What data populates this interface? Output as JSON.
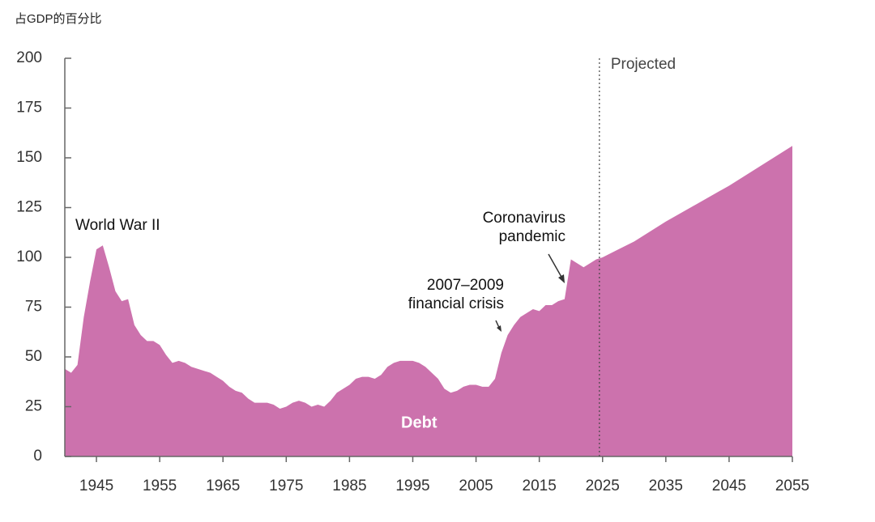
{
  "chart_data": {
    "type": "area",
    "y_label": "占GDP的百分比",
    "x": [
      1940,
      1941,
      1942,
      1943,
      1944,
      1945,
      1946,
      1947,
      1948,
      1949,
      1950,
      1951,
      1952,
      1953,
      1954,
      1955,
      1956,
      1957,
      1958,
      1959,
      1960,
      1961,
      1962,
      1963,
      1964,
      1965,
      1966,
      1967,
      1968,
      1969,
      1970,
      1971,
      1972,
      1973,
      1974,
      1975,
      1976,
      1977,
      1978,
      1979,
      1980,
      1981,
      1982,
      1983,
      1984,
      1985,
      1986,
      1987,
      1988,
      1989,
      1990,
      1991,
      1992,
      1993,
      1994,
      1995,
      1996,
      1997,
      1998,
      1999,
      2000,
      2001,
      2002,
      2003,
      2004,
      2005,
      2006,
      2007,
      2008,
      2009,
      2010,
      2011,
      2012,
      2013,
      2014,
      2015,
      2016,
      2017,
      2018,
      2019,
      2020,
      2021,
      2022,
      2023,
      2024,
      2025,
      2030,
      2035,
      2040,
      2045,
      2050,
      2055
    ],
    "series": [
      {
        "name": "Debt",
        "color": "#cc72ad",
        "values": [
          44,
          42,
          46,
          70,
          88,
          104,
          106,
          95,
          83,
          78,
          79,
          66,
          61,
          58,
          58,
          56,
          51,
          47,
          48,
          47,
          45,
          44,
          43,
          42,
          40,
          38,
          35,
          33,
          32,
          29,
          27,
          27,
          27,
          26,
          24,
          25,
          27,
          28,
          27,
          25,
          26,
          25,
          28,
          32,
          34,
          36,
          39,
          40,
          40,
          39,
          41,
          45,
          47,
          48,
          48,
          48,
          47,
          45,
          42,
          39,
          34,
          32,
          33,
          35,
          36,
          36,
          35,
          35,
          39,
          52,
          61,
          66,
          70,
          72,
          74,
          73,
          76,
          76,
          78,
          79,
          99,
          97,
          95,
          97,
          99,
          100,
          108,
          118,
          127,
          136,
          146,
          156
        ]
      }
    ],
    "xlim": [
      1940,
      2055
    ],
    "ylim": [
      0,
      200
    ],
    "xticks": [
      1945,
      1955,
      1965,
      1975,
      1985,
      1995,
      2005,
      2015,
      2025,
      2035,
      2045,
      2055
    ],
    "yticks": [
      0,
      25,
      50,
      75,
      100,
      125,
      150,
      175,
      200
    ],
    "projection_start": 2024.5,
    "projection_label": "Projected",
    "annotations": [
      {
        "lines": [
          "World War II"
        ]
      },
      {
        "lines": [
          "2007–2009",
          "financial crisis"
        ]
      },
      {
        "lines": [
          "Coronavirus",
          "pandemic"
        ]
      }
    ]
  }
}
